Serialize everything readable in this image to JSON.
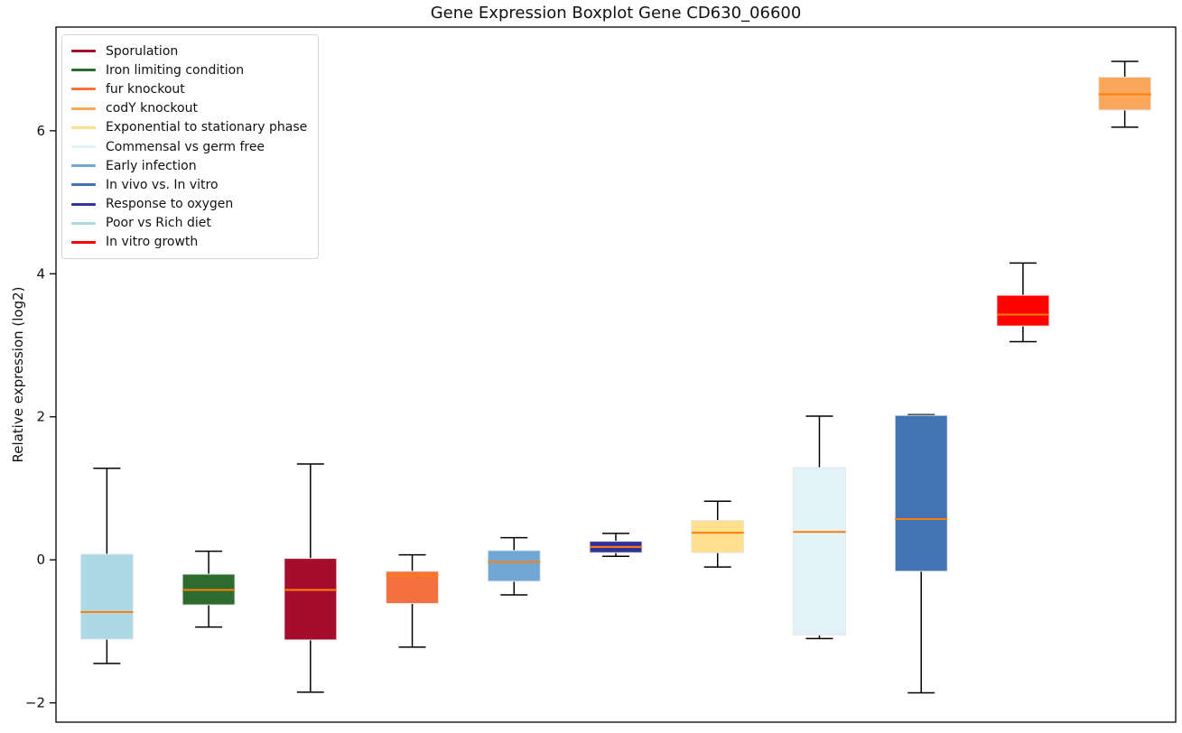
{
  "figure": {
    "title": "Gene Expression Boxplot Gene CD630_06600",
    "ylabel": "Relative expression (log2)"
  },
  "chart_data": {
    "type": "boxplot",
    "title": "Gene Expression Boxplot Gene CD630_06600",
    "xlabel": "",
    "ylabel": "Relative expression (log2)",
    "ylim": [
      -2.27,
      7.45
    ],
    "yticks": [
      {
        "label": "−2",
        "value": -2
      },
      {
        "label": "0",
        "value": 0
      },
      {
        "label": "2",
        "value": 2
      },
      {
        "label": "4",
        "value": 4
      },
      {
        "label": "6",
        "value": 6
      }
    ],
    "grid": false,
    "legend_position": "upper left",
    "median_color": "#ff7f0e",
    "whisker_color": "#000000",
    "box_edge_color": "#e8e8e8",
    "legend": [
      {
        "label": "Sporulation",
        "color": "#a50d2d"
      },
      {
        "label": "Iron limiting condition",
        "color": "#2d6b2e"
      },
      {
        "label": "fur knockout",
        "color": "#f4713f"
      },
      {
        "label": "codY knockout",
        "color": "#fca85c"
      },
      {
        "label": "Exponential to stationary phase",
        "color": "#ffe08e"
      },
      {
        "label": "Commensal vs germ free",
        "color": "#e1f3f8"
      },
      {
        "label": "Early infection",
        "color": "#6fa8d4"
      },
      {
        "label": "In vivo vs. In vitro",
        "color": "#4373b5"
      },
      {
        "label": "Response to oxygen",
        "color": "#32329b"
      },
      {
        "label": "Poor vs Rich diet",
        "color": "#add8e6"
      },
      {
        "label": "In vitro growth",
        "color": "#fe0100"
      }
    ],
    "boxes": [
      {
        "condition": "Poor vs Rich diet",
        "color": "#add8e6",
        "whisker_low": -1.45,
        "q1": -1.11,
        "median": -0.73,
        "q3": 0.08,
        "whisker_high": 1.28
      },
      {
        "condition": "Iron limiting condition",
        "color": "#2d6b2e",
        "whisker_low": -0.94,
        "q1": -0.63,
        "median": -0.42,
        "q3": -0.2,
        "whisker_high": 0.12
      },
      {
        "condition": "Sporulation",
        "color": "#a50d2d",
        "whisker_low": -1.85,
        "q1": -1.12,
        "median": -0.42,
        "q3": 0.02,
        "whisker_high": 1.34
      },
      {
        "condition": "fur knockout",
        "color": "#f4713f",
        "whisker_low": -1.22,
        "q1": -0.61,
        "median": -0.22,
        "q3": -0.16,
        "whisker_high": 0.07
      },
      {
        "condition": "Early infection",
        "color": "#6fa8d4",
        "whisker_low": -0.49,
        "q1": -0.3,
        "median": -0.03,
        "q3": 0.13,
        "whisker_high": 0.31
      },
      {
        "condition": "Response to oxygen",
        "color": "#32329b",
        "whisker_low": 0.05,
        "q1": 0.1,
        "median": 0.18,
        "q3": 0.26,
        "whisker_high": 0.37
      },
      {
        "condition": "Exponential to stationary phase",
        "color": "#ffe08e",
        "whisker_low": -0.1,
        "q1": 0.1,
        "median": 0.38,
        "q3": 0.55,
        "whisker_high": 0.82
      },
      {
        "condition": "Commensal vs germ free",
        "color": "#e1f3f8",
        "whisker_low": -1.1,
        "q1": -1.05,
        "median": 0.39,
        "q3": 1.29,
        "whisker_high": 2.01
      },
      {
        "condition": "In vivo vs. In vitro",
        "color": "#4373b5",
        "whisker_low": -1.86,
        "q1": -0.16,
        "median": 0.57,
        "q3": 2.02,
        "whisker_high": 2.03
      },
      {
        "condition": "In vitro growth",
        "color": "#fe0100",
        "whisker_low": 3.05,
        "q1": 3.27,
        "median": 3.43,
        "q3": 3.7,
        "whisker_high": 4.15
      },
      {
        "condition": "codY knockout",
        "color": "#fca85c",
        "whisker_low": 6.05,
        "q1": 6.29,
        "median": 6.51,
        "q3": 6.75,
        "whisker_high": 6.97
      }
    ]
  }
}
